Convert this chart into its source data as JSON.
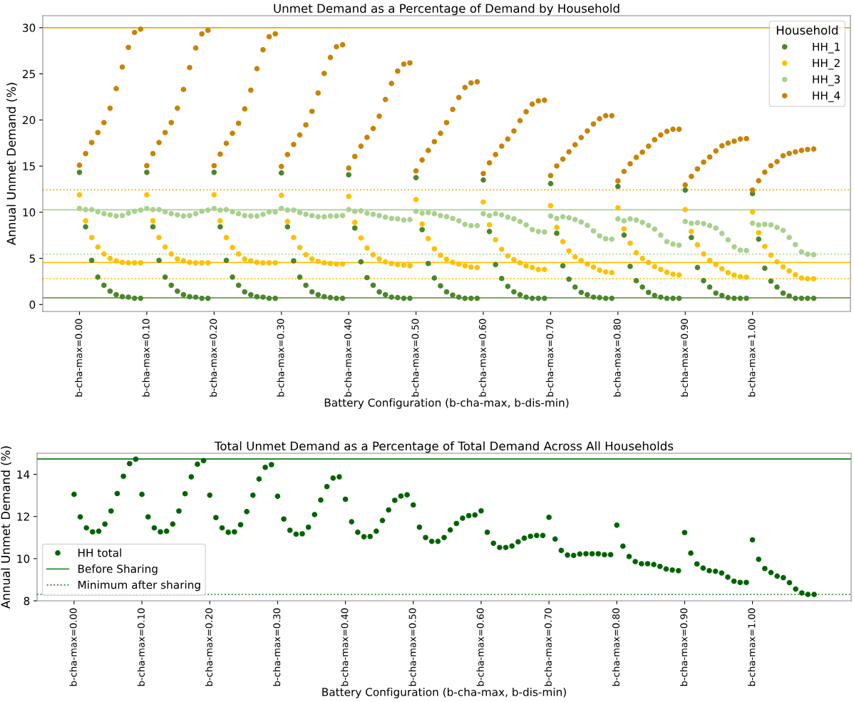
{
  "chart_data": [
    {
      "type": "scatter",
      "title": "Unmet Demand as a Percentage of Demand by Household",
      "xlabel": "Battery Configuration (b-cha-max, b-dis-min)",
      "ylabel": "Annual Unmet Demand (%)",
      "legend": "top right",
      "legend_title": "Household",
      "marker": "circle",
      "grid": false,
      "categories": [
        "b-cha-max=0.00",
        null,
        null,
        null,
        null,
        null,
        null,
        null,
        null,
        null,
        null,
        "b-cha-max=0.10",
        null,
        null,
        null,
        null,
        null,
        null,
        null,
        null,
        null,
        null,
        "b-cha-max=0.20",
        null,
        null,
        null,
        null,
        null,
        null,
        null,
        null,
        null,
        null,
        "b-cha-max=0.30",
        null,
        null,
        null,
        null,
        null,
        null,
        null,
        null,
        null,
        null,
        "b-cha-max=0.40",
        null,
        null,
        null,
        null,
        null,
        null,
        null,
        null,
        null,
        null,
        "b-cha-max=0.50",
        null,
        null,
        null,
        null,
        null,
        null,
        null,
        null,
        null,
        null,
        "b-cha-max=0.60",
        null,
        null,
        null,
        null,
        null,
        null,
        null,
        null,
        null,
        null,
        "b-cha-max=0.70",
        null,
        null,
        null,
        null,
        null,
        null,
        null,
        null,
        null,
        null,
        "b-cha-max=0.80",
        null,
        null,
        null,
        null,
        null,
        null,
        null,
        null,
        null,
        null,
        "b-cha-max=0.90",
        null,
        null,
        null,
        null,
        null,
        null,
        null,
        null,
        null,
        null,
        "b-cha-max=1.00",
        null,
        null,
        null,
        null,
        null,
        null,
        null,
        null,
        null,
        null
      ],
      "ylim": [
        -0.75,
        31.3
      ],
      "yticks": [
        0,
        5,
        10,
        15,
        20,
        25,
        30
      ],
      "series": [
        {
          "name": "HH_1",
          "color": "#4a872a",
          "values": [
            14.32,
            8.42,
            4.78,
            2.97,
            2.09,
            1.45,
            1.06,
            0.85,
            0.8,
            0.67,
            0.67,
            14.32,
            8.42,
            4.78,
            2.97,
            2.09,
            1.45,
            1.06,
            0.85,
            0.8,
            0.67,
            0.67,
            14.32,
            8.42,
            4.78,
            2.97,
            2.09,
            1.37,
            1.06,
            0.85,
            0.8,
            0.67,
            0.67,
            14.26,
            8.42,
            4.73,
            2.97,
            2.09,
            1.37,
            1.06,
            0.85,
            0.75,
            0.67,
            0.67,
            14.06,
            8.29,
            4.63,
            2.92,
            2.09,
            1.37,
            1.06,
            0.8,
            0.75,
            0.67,
            0.67,
            13.75,
            8.11,
            4.44,
            2.87,
            2.02,
            1.37,
            1.03,
            0.8,
            0.67,
            0.67,
            0.67,
            13.49,
            7.91,
            4.32,
            2.82,
            1.96,
            1.37,
            1.06,
            0.8,
            0.67,
            0.67,
            0.67,
            13.1,
            7.73,
            4.19,
            2.74,
            1.89,
            1.32,
            1.06,
            0.8,
            0.75,
            0.67,
            0.67,
            12.79,
            7.52,
            4.13,
            2.58,
            1.89,
            1.32,
            0.98,
            0.8,
            0.67,
            0.67,
            0.67,
            12.4,
            7.26,
            4.01,
            2.58,
            1.89,
            1.24,
            0.98,
            0.75,
            0.67,
            0.67,
            0.67,
            12.02,
            7.08,
            3.93,
            2.53,
            1.89,
            1.24,
            0.93,
            0.67,
            0.67,
            0.67,
            0.67
          ]
        },
        {
          "name": "HH_2",
          "color": "#ffc000",
          "values": [
            11.89,
            9.07,
            7.26,
            6.23,
            5.48,
            4.99,
            4.73,
            4.57,
            4.52,
            4.52,
            4.52,
            11.89,
            9.07,
            7.26,
            6.23,
            5.48,
            4.94,
            4.73,
            4.57,
            4.52,
            4.52,
            4.52,
            11.89,
            9.07,
            7.26,
            6.18,
            5.48,
            4.94,
            4.73,
            4.57,
            4.52,
            4.52,
            4.52,
            11.83,
            8.99,
            7.26,
            6.18,
            5.4,
            4.94,
            4.68,
            4.52,
            4.44,
            4.39,
            4.39,
            11.71,
            8.89,
            7.21,
            6.12,
            5.4,
            4.94,
            4.63,
            4.44,
            4.32,
            4.26,
            4.19,
            11.37,
            8.73,
            7.15,
            6.05,
            5.35,
            4.91,
            4.57,
            4.39,
            4.19,
            4.06,
            4.01,
            11.11,
            8.63,
            7.03,
            5.99,
            5.27,
            4.86,
            4.52,
            4.19,
            4.01,
            3.8,
            3.8,
            10.72,
            8.35,
            6.82,
            5.81,
            5.17,
            4.76,
            4.39,
            4.06,
            3.72,
            3.54,
            3.46,
            10.49,
            8.19,
            6.64,
            5.61,
            4.99,
            4.55,
            4.11,
            3.8,
            3.49,
            3.28,
            3.2,
            10.28,
            7.91,
            6.46,
            5.48,
            4.78,
            4.34,
            3.88,
            3.46,
            3.18,
            3.02,
            2.97,
            10.03,
            7.78,
            6.3,
            5.35,
            4.63,
            4.08,
            3.64,
            3.23,
            2.87,
            2.79,
            2.79
          ]
        },
        {
          "name": "HH_3",
          "color": "#a9d18e",
          "values": [
            10.41,
            10.28,
            10.28,
            10.05,
            9.84,
            9.72,
            9.59,
            9.64,
            9.9,
            10.1,
            10.23,
            10.41,
            10.28,
            10.28,
            10.05,
            9.84,
            9.72,
            9.59,
            9.64,
            9.84,
            10.1,
            10.23,
            10.41,
            10.23,
            10.28,
            10.05,
            9.84,
            9.64,
            9.59,
            9.59,
            9.77,
            10.03,
            10.03,
            10.41,
            10.23,
            10.23,
            9.97,
            9.77,
            9.64,
            9.51,
            9.51,
            9.59,
            9.59,
            9.64,
            10.28,
            10.1,
            10.15,
            9.9,
            9.77,
            9.64,
            9.46,
            9.33,
            9.28,
            9.15,
            9.2,
            10.1,
            9.9,
            9.97,
            9.84,
            9.64,
            9.51,
            9.33,
            9.07,
            8.68,
            8.55,
            8.55,
            9.84,
            9.64,
            9.84,
            9.72,
            9.46,
            9.28,
            8.99,
            8.63,
            8.11,
            7.91,
            7.86,
            9.59,
            9.33,
            9.51,
            9.41,
            9.2,
            8.94,
            8.58,
            7.98,
            7.44,
            7.13,
            7.08,
            9.28,
            9.07,
            9.28,
            9.15,
            8.89,
            8.58,
            8.17,
            7.52,
            6.82,
            6.54,
            6.43,
            8.99,
            8.81,
            8.86,
            8.76,
            8.55,
            8.29,
            7.7,
            7.0,
            6.25,
            5.89,
            5.84,
            8.81,
            8.63,
            8.68,
            8.63,
            8.35,
            8.04,
            7.26,
            6.49,
            5.71,
            5.45,
            5.4
          ]
        },
        {
          "name": "HH_4",
          "color": "#c98300",
          "values": [
            15.09,
            16.36,
            17.55,
            18.63,
            19.72,
            21.27,
            23.39,
            25.74,
            27.86,
            29.48,
            29.84,
            15.04,
            16.36,
            17.55,
            18.63,
            19.72,
            21.27,
            23.31,
            25.68,
            27.8,
            29.33,
            29.72,
            15.04,
            16.3,
            17.47,
            18.55,
            19.64,
            21.19,
            23.23,
            25.56,
            27.6,
            29.02,
            29.33,
            14.96,
            16.25,
            17.34,
            18.37,
            19.46,
            20.93,
            22.92,
            25.04,
            26.77,
            27.93,
            28.14,
            14.78,
            16.05,
            17.16,
            18.11,
            19.07,
            20.41,
            22.22,
            23.95,
            25.3,
            26.05,
            26.18,
            14.47,
            15.66,
            16.69,
            17.65,
            18.55,
            19.72,
            21.14,
            22.43,
            23.51,
            24.01,
            24.13,
            14.19,
            15.35,
            16.25,
            17.16,
            17.93,
            18.81,
            19.92,
            20.88,
            21.71,
            22.07,
            22.14,
            13.97,
            15.01,
            15.76,
            16.54,
            17.31,
            18.09,
            18.81,
            19.56,
            20.13,
            20.46,
            20.46,
            13.39,
            14.42,
            15.25,
            15.94,
            16.51,
            17.16,
            17.86,
            18.37,
            18.76,
            18.99,
            18.99,
            12.95,
            13.88,
            14.7,
            15.43,
            15.99,
            16.64,
            17.21,
            17.49,
            17.7,
            17.93,
            17.98,
            12.4,
            13.41,
            14.34,
            15.04,
            15.48,
            16.12,
            16.38,
            16.54,
            16.69,
            16.8,
            16.85
          ]
        }
      ],
      "ref_lines": [
        {
          "axis": "y",
          "value": 0.72,
          "color": "#6a9a4a",
          "line_style": "solid"
        },
        {
          "axis": "y",
          "value": 4.55,
          "color": "#ffc000",
          "line_style": "solid"
        },
        {
          "axis": "y",
          "value": 2.81,
          "color": "#ffc000",
          "line_style": "dotted"
        },
        {
          "axis": "y",
          "value": 10.26,
          "color": "#a9d18e",
          "line_style": "solid"
        },
        {
          "axis": "y",
          "value": 5.45,
          "color": "#a9d18e",
          "line_style": "dotted"
        },
        {
          "axis": "y",
          "value": 30.0,
          "color": "#f0a800",
          "line_style": "solid"
        },
        {
          "axis": "y",
          "value": 12.43,
          "color": "#f0a800",
          "line_style": "dotted"
        }
      ]
    },
    {
      "type": "scatter",
      "title": "Total Unmet Demand as a Percentage of Total Demand Across All Households",
      "xlabel": "Battery Configuration (b-cha-max, b-dis-min)",
      "ylabel": "Annual Unmet Demand (%)",
      "legend": "bottom left",
      "marker": "circle",
      "grid": false,
      "categories": [
        "b-cha-max=0.00",
        null,
        null,
        null,
        null,
        null,
        null,
        null,
        null,
        null,
        null,
        "b-cha-max=0.10",
        null,
        null,
        null,
        null,
        null,
        null,
        null,
        null,
        null,
        null,
        "b-cha-max=0.20",
        null,
        null,
        null,
        null,
        null,
        null,
        null,
        null,
        null,
        null,
        "b-cha-max=0.30",
        null,
        null,
        null,
        null,
        null,
        null,
        null,
        null,
        null,
        null,
        "b-cha-max=0.40",
        null,
        null,
        null,
        null,
        null,
        null,
        null,
        null,
        null,
        null,
        "b-cha-max=0.50",
        null,
        null,
        null,
        null,
        null,
        null,
        null,
        null,
        null,
        null,
        "b-cha-max=0.60",
        null,
        null,
        null,
        null,
        null,
        null,
        null,
        null,
        null,
        null,
        "b-cha-max=0.70",
        null,
        null,
        null,
        null,
        null,
        null,
        null,
        null,
        null,
        null,
        "b-cha-max=0.80",
        null,
        null,
        null,
        null,
        null,
        null,
        null,
        null,
        null,
        null,
        "b-cha-max=0.90",
        null,
        null,
        null,
        null,
        null,
        null,
        null,
        null,
        null,
        null,
        "b-cha-max=1.00",
        null,
        null,
        null,
        null,
        null,
        null,
        null,
        null,
        null,
        null
      ],
      "ylim": [
        8.0,
        15.0
      ],
      "yticks": [
        8,
        10,
        12,
        14
      ],
      "series": [
        {
          "name": "HH total",
          "color": "#006400",
          "values": [
            13.05,
            11.98,
            11.46,
            11.27,
            11.3,
            11.64,
            12.26,
            13.09,
            13.91,
            14.51,
            14.72,
            13.05,
            11.98,
            11.46,
            11.27,
            11.3,
            11.64,
            12.26,
            13.08,
            13.88,
            14.48,
            14.65,
            13.01,
            11.95,
            11.46,
            11.25,
            11.27,
            11.61,
            12.23,
            13.01,
            13.78,
            14.33,
            14.46,
            12.96,
            11.88,
            11.35,
            11.16,
            11.18,
            11.49,
            12.09,
            12.78,
            13.42,
            13.82,
            13.88,
            12.82,
            11.75,
            11.25,
            11.04,
            11.05,
            11.3,
            11.81,
            12.31,
            12.77,
            12.97,
            13.03,
            12.55,
            11.49,
            11.0,
            10.82,
            10.82,
            11.0,
            11.36,
            11.67,
            11.92,
            12.04,
            12.07,
            12.27,
            11.25,
            10.73,
            10.53,
            10.53,
            10.6,
            10.8,
            10.97,
            11.06,
            11.1,
            11.1,
            11.96,
            10.93,
            10.39,
            10.17,
            10.15,
            10.22,
            10.23,
            10.23,
            10.23,
            10.19,
            10.19,
            11.59,
            10.59,
            10.1,
            9.86,
            9.76,
            9.76,
            9.72,
            9.63,
            9.51,
            9.46,
            9.43,
            11.24,
            10.26,
            9.75,
            9.55,
            9.43,
            9.4,
            9.32,
            9.12,
            8.93,
            8.87,
            8.87,
            10.89,
            9.97,
            9.53,
            9.34,
            9.17,
            9.1,
            8.86,
            8.56,
            8.37,
            8.3,
            8.3
          ]
        }
      ],
      "ref_lines": [
        {
          "axis": "y",
          "value": 14.73,
          "label": "Before Sharing",
          "color": "#2e8b2e",
          "line_style": "solid"
        },
        {
          "axis": "y",
          "value": 8.3,
          "label": "Minimum after sharing",
          "color": "#2e8b2e",
          "line_style": "dotted"
        }
      ]
    }
  ]
}
